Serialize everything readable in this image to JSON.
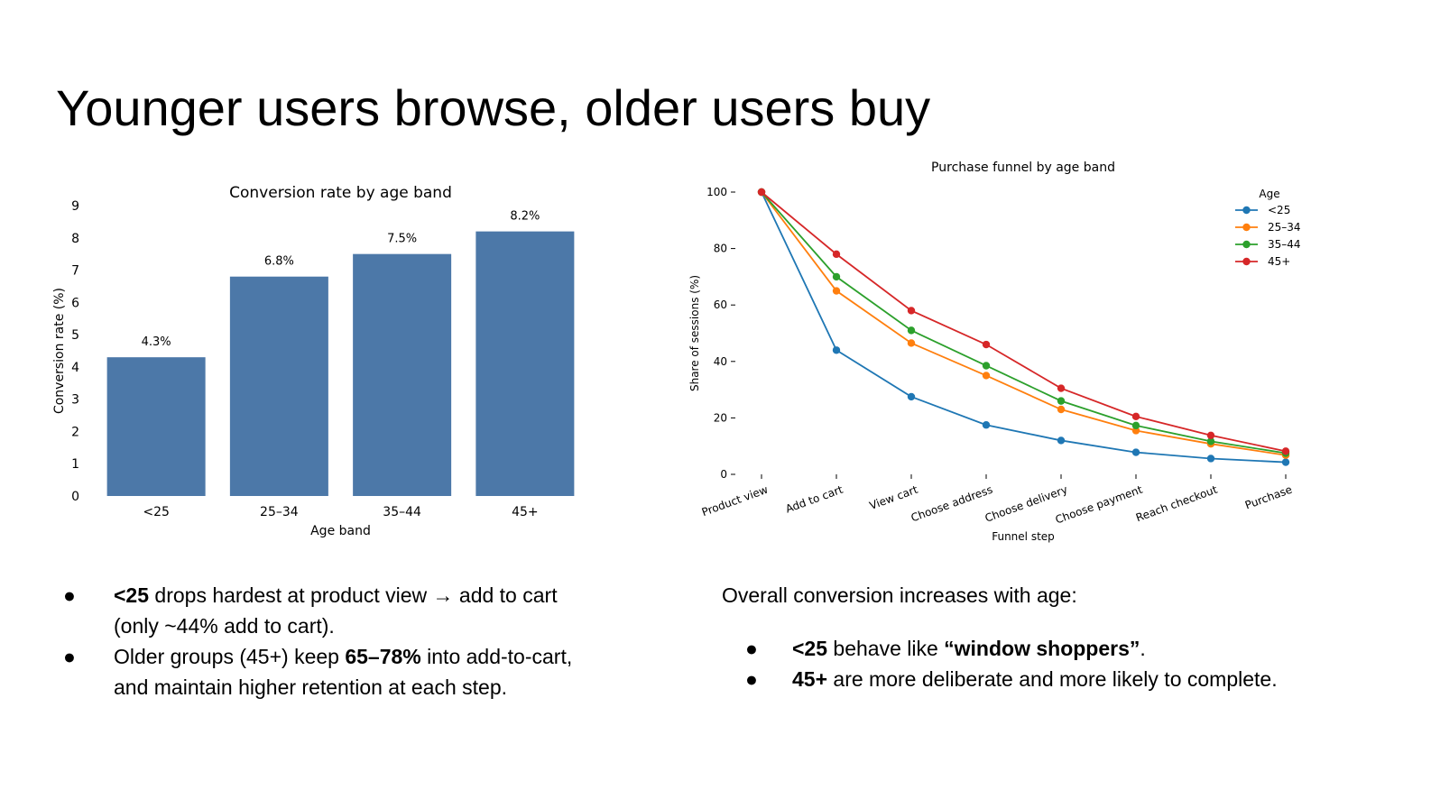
{
  "slide": {
    "title": "Younger users browse, older users buy"
  },
  "chart_data": [
    {
      "type": "bar",
      "title": "Conversion rate by age band",
      "xlabel": "Age band",
      "ylabel": "Conversion rate (%)",
      "categories": [
        "<25",
        "25–34",
        "35–44",
        "45+"
      ],
      "values": [
        4.3,
        6.8,
        7.5,
        8.2
      ],
      "data_labels": [
        "4.3%",
        "6.8%",
        "7.5%",
        "8.2%"
      ],
      "ylim": [
        0,
        9
      ],
      "yticks": [
        "0",
        "1",
        "2",
        "3",
        "4",
        "5",
        "6",
        "7",
        "8",
        "9"
      ],
      "grid": false,
      "color": "#4c78a8"
    },
    {
      "type": "line",
      "title": "Purchase funnel by age band",
      "xlabel": "Funnel step",
      "ylabel": "Share of sessions (%)",
      "categories": [
        "Product view",
        "Add to cart",
        "View cart",
        "Choose address",
        "Choose delivery",
        "Choose payment",
        "Reach checkout",
        "Purchase"
      ],
      "ylim": [
        0,
        100
      ],
      "yticks": [
        "0",
        "20",
        "40",
        "60",
        "80",
        "100"
      ],
      "grid": false,
      "legend": {
        "title": "Age",
        "placement": "top-right"
      },
      "series": [
        {
          "name": "<25",
          "color": "#1f77b4",
          "values": [
            100,
            44,
            27.5,
            17.5,
            12,
            7.8,
            5.6,
            4.3
          ]
        },
        {
          "name": "25–34",
          "color": "#ff7f0e",
          "values": [
            100,
            65,
            46.5,
            35,
            23,
            15.5,
            10.8,
            6.8
          ]
        },
        {
          "name": "35–44",
          "color": "#2ca02c",
          "values": [
            100,
            70,
            51,
            38.5,
            26,
            17.3,
            11.7,
            7.5
          ]
        },
        {
          "name": "45+",
          "color": "#d62728",
          "values": [
            100,
            78,
            58,
            46,
            30.5,
            20.5,
            13.8,
            8.2
          ]
        }
      ]
    }
  ],
  "left_bullets": [
    {
      "b": "<25",
      "t": " drops hardest at product view → add to cart (only ~44% add to cart)."
    },
    {
      "p": "Older groups (45+) keep ",
      "b": "65–78%",
      "t": " into add-to-cart, and maintain higher retention at each step."
    }
  ],
  "right_text": {
    "intro": "Overall conversion increases with age:",
    "bullets": [
      {
        "b": "<25",
        "t": " behave like ",
        "b2": "“window shoppers”",
        "t2": "."
      },
      {
        "b": "45+",
        "t": " are more deliberate and more likely to complete."
      }
    ]
  },
  "bullet_glyph": "●"
}
